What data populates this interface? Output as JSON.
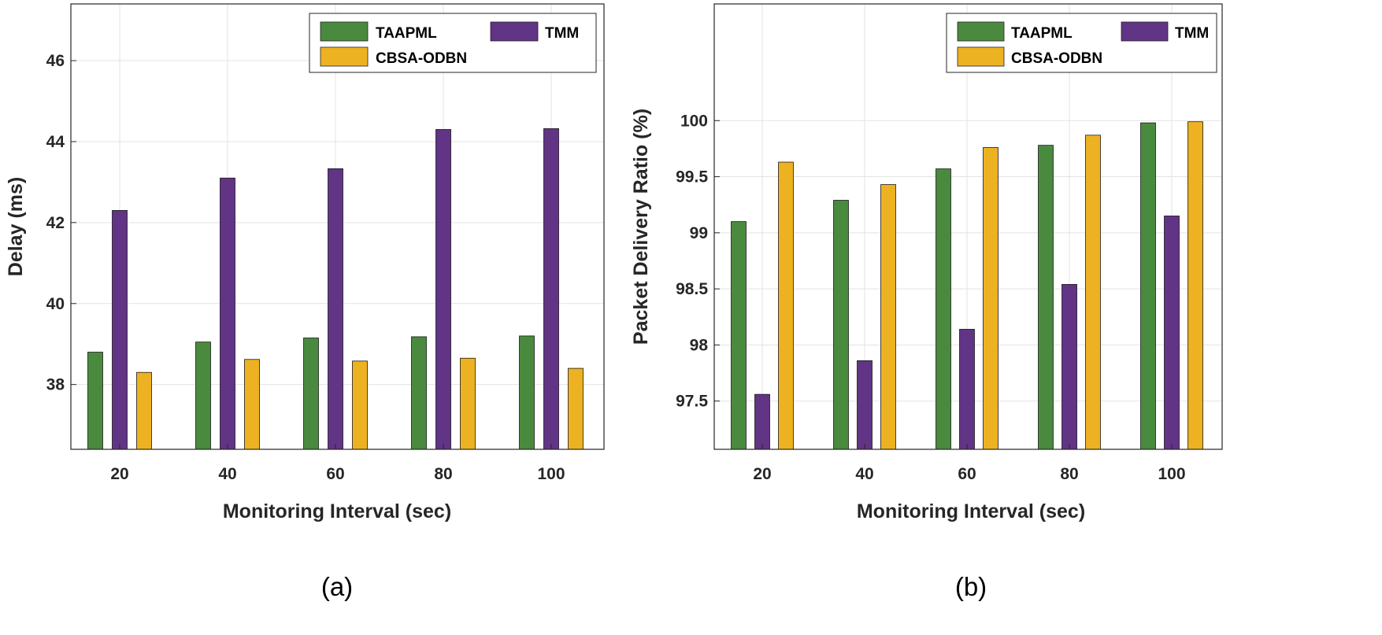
{
  "colors": {
    "TAAPML": "#4a8a3e",
    "TMM": "#613485",
    "CBSA-ODBN": "#edb222"
  },
  "legend": [
    "TAAPML",
    "TMM",
    "CBSA-ODBN"
  ],
  "chart_data": [
    {
      "type": "bar",
      "panel_label": "(a)",
      "categories": [
        "20",
        "40",
        "60",
        "80",
        "100"
      ],
      "series": [
        {
          "name": "TAAPML",
          "values": [
            38.8,
            39.05,
            39.15,
            39.18,
            39.2
          ]
        },
        {
          "name": "TMM",
          "values": [
            42.3,
            43.1,
            43.33,
            44.3,
            44.32
          ]
        },
        {
          "name": "CBSA-ODBN",
          "values": [
            38.3,
            38.62,
            38.58,
            38.65,
            38.4
          ]
        }
      ],
      "xlabel": "Monitoring Interval (sec)",
      "ylabel": "Delay (ms)",
      "ylim": [
        36.4,
        47.4
      ],
      "yticks": [
        "38",
        "40",
        "42",
        "44",
        "46"
      ],
      "grid": true,
      "legend_position": "top-right"
    },
    {
      "type": "bar",
      "panel_label": "(b)",
      "categories": [
        "20",
        "40",
        "60",
        "80",
        "100"
      ],
      "series": [
        {
          "name": "TAAPML",
          "values": [
            99.1,
            99.29,
            99.57,
            99.78,
            99.98
          ]
        },
        {
          "name": "TMM",
          "values": [
            97.56,
            97.86,
            98.14,
            98.54,
            99.15
          ]
        },
        {
          "name": "CBSA-ODBN",
          "values": [
            99.63,
            99.43,
            99.76,
            99.87,
            99.99
          ]
        }
      ],
      "xlabel": "Monitoring Interval (sec)",
      "ylabel": "Packet Delivery Ratio (%)",
      "ylim": [
        97.07,
        101.04
      ],
      "yticks": [
        "97.5",
        "98",
        "98.5",
        "99",
        "99.5",
        "100"
      ],
      "grid": true,
      "legend_position": "top-right"
    }
  ]
}
